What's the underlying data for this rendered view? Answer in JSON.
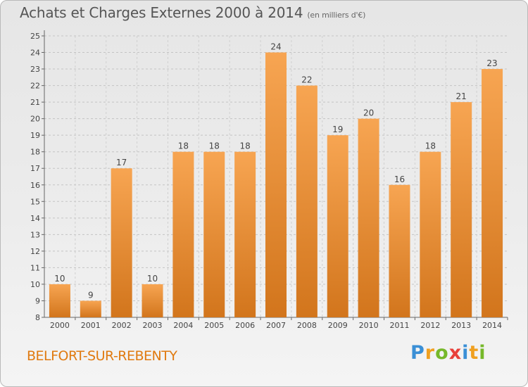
{
  "header": {
    "title": "Achats et Charges Externes 2000 à 2014",
    "subtitle": "(en milliers d'€)"
  },
  "footer": {
    "commune": "BELFORT-SUR-REBENTY",
    "brand": "Proxiti"
  },
  "colors": {
    "bar_top": "#f7a552",
    "bar_bottom": "#d2751c",
    "commune_text": "#e07a10"
  },
  "chart_data": {
    "type": "bar",
    "title": "Achats et Charges Externes 2000 à 2014",
    "subtitle": "(en milliers d'€)",
    "categories": [
      "2000",
      "2001",
      "2002",
      "2003",
      "2004",
      "2005",
      "2006",
      "2007",
      "2008",
      "2009",
      "2010",
      "2011",
      "2012",
      "2013",
      "2014"
    ],
    "values": [
      10,
      9,
      17,
      10,
      18,
      18,
      18,
      24,
      22,
      19,
      20,
      16,
      18,
      21,
      23
    ],
    "ylim": [
      8,
      25
    ],
    "yticks": [
      8,
      9,
      10,
      11,
      12,
      13,
      14,
      15,
      16,
      17,
      18,
      19,
      20,
      21,
      22,
      23,
      24,
      25
    ],
    "grid": true,
    "data_labels": true
  }
}
